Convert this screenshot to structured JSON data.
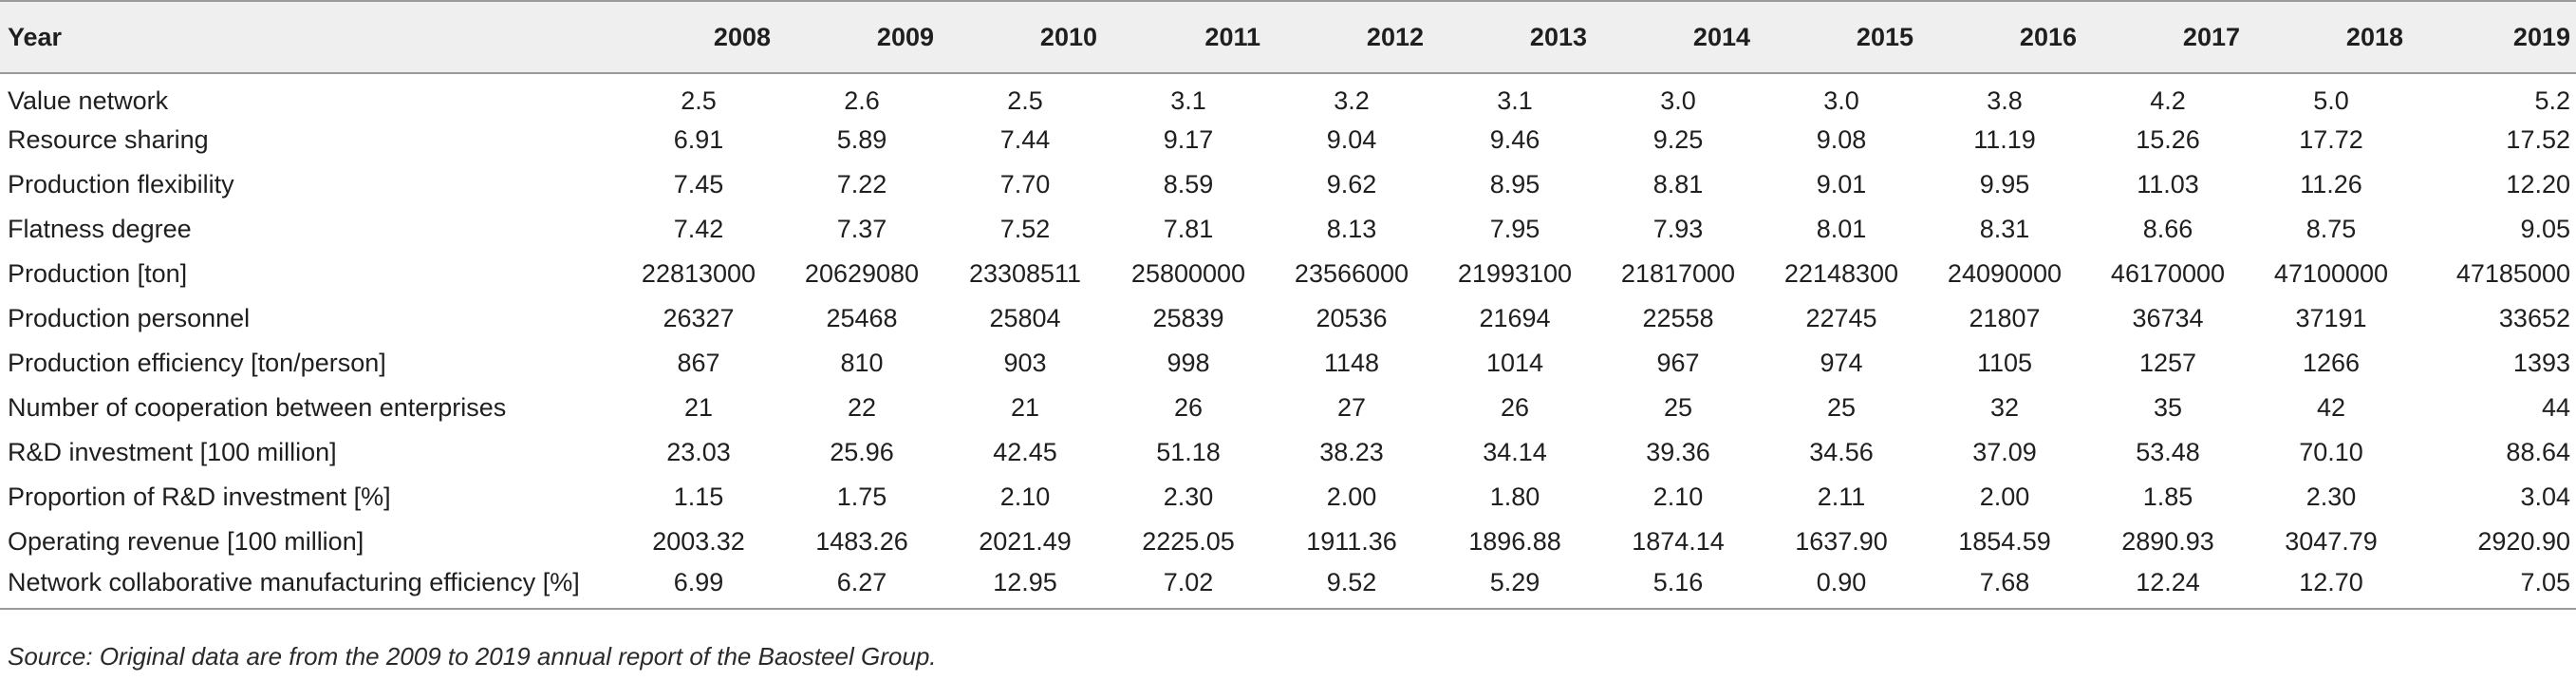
{
  "table": {
    "header_label": "Year",
    "years": [
      "2008",
      "2009",
      "2010",
      "2011",
      "2012",
      "2013",
      "2014",
      "2015",
      "2016",
      "2017",
      "2018",
      "2019"
    ],
    "rows": [
      {
        "label": "Value network",
        "values": [
          "2.5",
          "2.6",
          "2.5",
          "3.1",
          "3.2",
          "3.1",
          "3.0",
          "3.0",
          "3.8",
          "4.2",
          "5.0",
          "5.2"
        ]
      },
      {
        "label": "Resource sharing",
        "values": [
          "6.91",
          "5.89",
          "7.44",
          "9.17",
          "9.04",
          "9.46",
          "9.25",
          "9.08",
          "11.19",
          "15.26",
          "17.72",
          "17.52"
        ]
      },
      {
        "label": "Production flexibility",
        "values": [
          "7.45",
          "7.22",
          "7.70",
          "8.59",
          "9.62",
          "8.95",
          "8.81",
          "9.01",
          "9.95",
          "11.03",
          "11.26",
          "12.20"
        ]
      },
      {
        "label": "Flatness degree",
        "values": [
          "7.42",
          "7.37",
          "7.52",
          "7.81",
          "8.13",
          "7.95",
          "7.93",
          "8.01",
          "8.31",
          "8.66",
          "8.75",
          "9.05"
        ]
      },
      {
        "label": "Production [ton]",
        "values": [
          "22813000",
          "20629080",
          "23308511",
          "25800000",
          "23566000",
          "21993100",
          "21817000",
          "22148300",
          "24090000",
          "46170000",
          "47100000",
          "47185000"
        ]
      },
      {
        "label": "Production personnel",
        "values": [
          "26327",
          "25468",
          "25804",
          "25839",
          "20536",
          "21694",
          "22558",
          "22745",
          "21807",
          "36734",
          "37191",
          "33652"
        ]
      },
      {
        "label": "Production efficiency [ton/person]",
        "values": [
          "867",
          "810",
          "903",
          "998",
          "1148",
          "1014",
          "967",
          "974",
          "1105",
          "1257",
          "1266",
          "1393"
        ]
      },
      {
        "label": "Number of cooperation between enterprises",
        "values": [
          "21",
          "22",
          "21",
          "26",
          "27",
          "26",
          "25",
          "25",
          "32",
          "35",
          "42",
          "44"
        ]
      },
      {
        "label": "R&D investment [100 million]",
        "values": [
          "23.03",
          "25.96",
          "42.45",
          "51.18",
          "38.23",
          "34.14",
          "39.36",
          "34.56",
          "37.09",
          "53.48",
          "70.10",
          "88.64"
        ]
      },
      {
        "label": "Proportion of R&D investment [%]",
        "values": [
          "1.15",
          "1.75",
          "2.10",
          "2.30",
          "2.00",
          "1.80",
          "2.10",
          "2.11",
          "2.00",
          "1.85",
          "2.30",
          "3.04"
        ]
      },
      {
        "label": "Operating revenue [100 million]",
        "values": [
          "2003.32",
          "1483.26",
          "2021.49",
          "2225.05",
          "1911.36",
          "1896.88",
          "1874.14",
          "1637.90",
          "1854.59",
          "2890.93",
          "3047.79",
          "2920.90"
        ]
      },
      {
        "label": "Network collaborative manufacturing efficiency [%]",
        "values": [
          "6.99",
          "6.27",
          "12.95",
          "7.02",
          "9.52",
          "5.29",
          "5.16",
          "0.90",
          "7.68",
          "12.24",
          "12.70",
          "7.05"
        ]
      }
    ]
  },
  "footnote": "Source: Original data are from the 2009 to 2019 annual report of the Baosteel Group."
}
